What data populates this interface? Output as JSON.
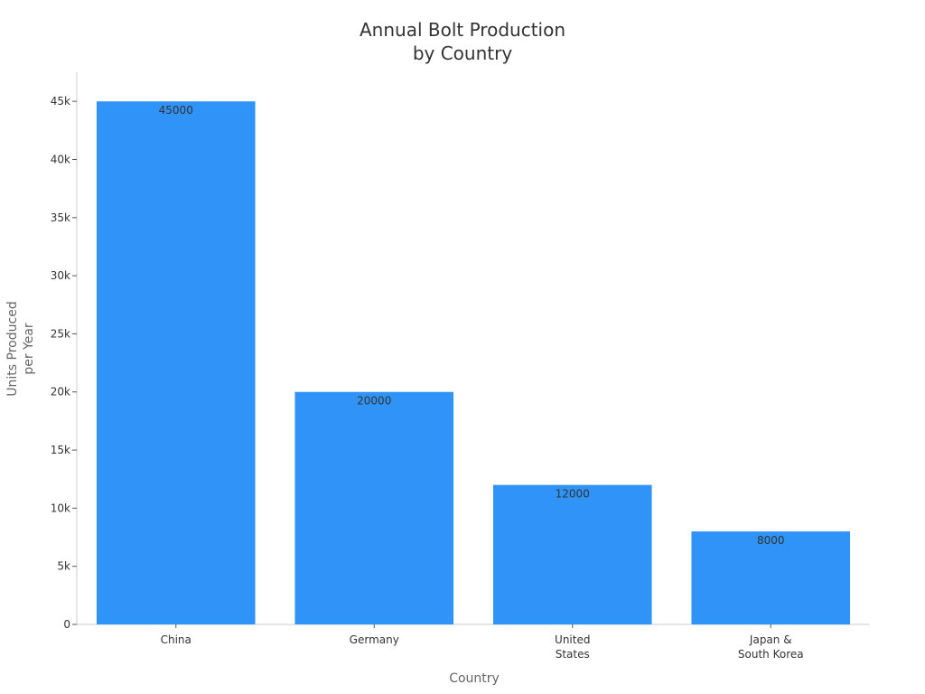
{
  "chart_data": {
    "type": "bar",
    "title": "Annual Bolt Production\nby Country",
    "xlabel": "Country",
    "ylabel": "Units Produced\nper Year",
    "categories": [
      "China",
      "Germany",
      "United\nStates",
      "Japan &\nSouth Korea"
    ],
    "values": [
      45000,
      20000,
      12000,
      8000
    ],
    "data_labels": [
      "45000",
      "20000",
      "12000",
      "8000"
    ],
    "y_ticks": [
      0,
      5000,
      10000,
      15000,
      20000,
      25000,
      30000,
      35000,
      40000,
      45000
    ],
    "y_tick_labels": [
      "0",
      "5k",
      "10k",
      "15k",
      "20k",
      "25k",
      "30k",
      "35k",
      "40k",
      "45k"
    ],
    "ylim": [
      0,
      47500
    ],
    "grid": false,
    "colors": {
      "bar": "#2f93f8",
      "axis": "#cccccc",
      "text": "#333333",
      "axis_title": "#666666"
    }
  }
}
